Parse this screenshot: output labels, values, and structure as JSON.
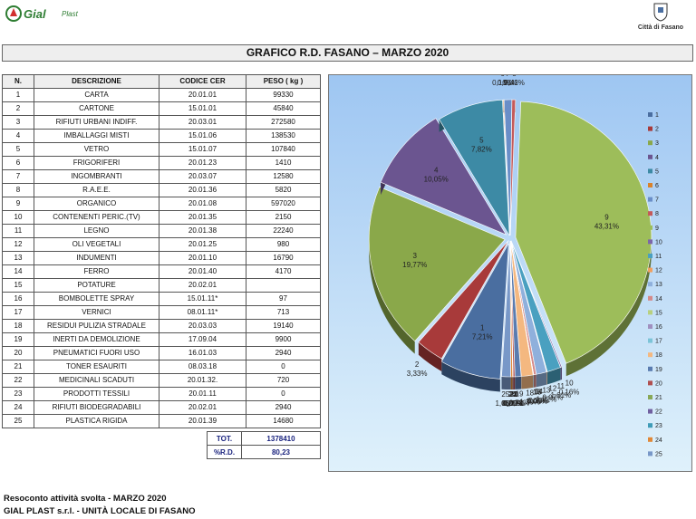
{
  "header": {
    "logo_name": "Gial",
    "logo_sub": "Plast",
    "city_label": "Città di Fasano",
    "title": "GRAFICO R.D. FASANO – MARZO 2020"
  },
  "table": {
    "headers": [
      "N.",
      "DESCRIZIONE",
      "CODICE CER",
      "PESO ( kg )"
    ],
    "rows": [
      [
        "1",
        "CARTA",
        "20.01.01",
        "99330"
      ],
      [
        "2",
        "CARTONE",
        "15.01.01",
        "45840"
      ],
      [
        "3",
        "RIFIUTI URBANI INDIFF.",
        "20.03.01",
        "272580"
      ],
      [
        "4",
        "IMBALLAGGI MISTI",
        "15.01.06",
        "138530"
      ],
      [
        "5",
        "VETRO",
        "15.01.07",
        "107840"
      ],
      [
        "6",
        "FRIGORIFERI",
        "20.01.23",
        "1410"
      ],
      [
        "7",
        "INGOMBRANTI",
        "20.03.07",
        "12580"
      ],
      [
        "8",
        "R.A.E.E.",
        "20.01.36",
        "5820"
      ],
      [
        "9",
        "ORGANICO",
        "20.01.08",
        "597020"
      ],
      [
        "10",
        "CONTENENTI PERIC.(TV)",
        "20.01.35",
        "2150"
      ],
      [
        "11",
        "LEGNO",
        "20.01.38",
        "22240"
      ],
      [
        "12",
        "OLI VEGETALI",
        "20.01.25",
        "980"
      ],
      [
        "13",
        "INDUMENTI",
        "20.01.10",
        "16790"
      ],
      [
        "14",
        "FERRO",
        "20.01.40",
        "4170"
      ],
      [
        "15",
        "POTATURE",
        "20.02.01",
        ""
      ],
      [
        "16",
        "BOMBOLETTE SPRAY",
        "15.01.11*",
        "97"
      ],
      [
        "17",
        "VERNICI",
        "08.01.11*",
        "713"
      ],
      [
        "18",
        "RESIDUI PULIZIA STRADALE",
        "20.03.03",
        "19140"
      ],
      [
        "19",
        "INERTI DA DEMOLIZIONE",
        "17.09.04",
        "9900"
      ],
      [
        "20",
        "PNEUMATICI FUORI USO",
        "16.01.03",
        "2940"
      ],
      [
        "21",
        "TONER ESAURITI",
        "08.03.18",
        "0"
      ],
      [
        "22",
        "MEDICINALI SCADUTI",
        "20.01.32.",
        "720"
      ],
      [
        "23",
        "PRODOTTI TESSILI",
        "20.01.11",
        "0"
      ],
      [
        "24",
        "RIFIUTI BIODEGRADABILI",
        "20.02.01",
        "2940"
      ],
      [
        "25",
        "PLASTICA RIGIDA",
        "20.01.39",
        "14680"
      ]
    ],
    "total_label": "TOT.",
    "total_value": "1378410",
    "rd_label": "%R.D.",
    "rd_value": "80,23"
  },
  "chart_data": {
    "type": "pie",
    "title": "",
    "categories": [
      "1",
      "2",
      "3",
      "4",
      "5",
      "6",
      "7",
      "8",
      "9",
      "10",
      "11",
      "12",
      "13",
      "14",
      "15",
      "16",
      "17",
      "18",
      "19",
      "20",
      "21",
      "22",
      "23",
      "24",
      "25"
    ],
    "values": [
      99330,
      45840,
      272580,
      138530,
      107840,
      1410,
      12580,
      5820,
      597020,
      2150,
      22240,
      980,
      16790,
      4170,
      0,
      97,
      713,
      19140,
      9900,
      2940,
      0,
      720,
      0,
      2940,
      14680
    ],
    "percent_labels": [
      "7,21%",
      "3,33%",
      "19,77%",
      "10,05%",
      "7,82%",
      "0,10%",
      "0,91%",
      "0,42%",
      "43,31%",
      "0,16%",
      "1,61%",
      "0,07%",
      "1,22%",
      "0,30%",
      "0,00%",
      "0,01%",
      "0,05%",
      "1,39%",
      "0,72%",
      "0,21%",
      "0,00%",
      "0,05%",
      "0,00%",
      "0,21%",
      "1,06%"
    ],
    "colors": [
      "#4a6ea0",
      "#a83a3a",
      "#8aa84a",
      "#6b5590",
      "#3d8aa5",
      "#d9822b",
      "#6a8ec8",
      "#c45a5a",
      "#9dbd5a",
      "#7c67a8",
      "#4aa0c0",
      "#f0a060",
      "#8fb0dc",
      "#d48a8a",
      "#b8d080",
      "#a090c0",
      "#7cc4d8",
      "#f4b880",
      "#5a7cb0",
      "#b05050",
      "#88a858",
      "#7060a0",
      "#409cb8",
      "#e08838",
      "#7898c8"
    ],
    "legend_position": "right"
  },
  "footer": {
    "line1": "Resoconto attività svolta - MARZO 2020",
    "line2": "GIAL PLAST s.r.l. - UNITÀ LOCALE DI FASANO"
  }
}
